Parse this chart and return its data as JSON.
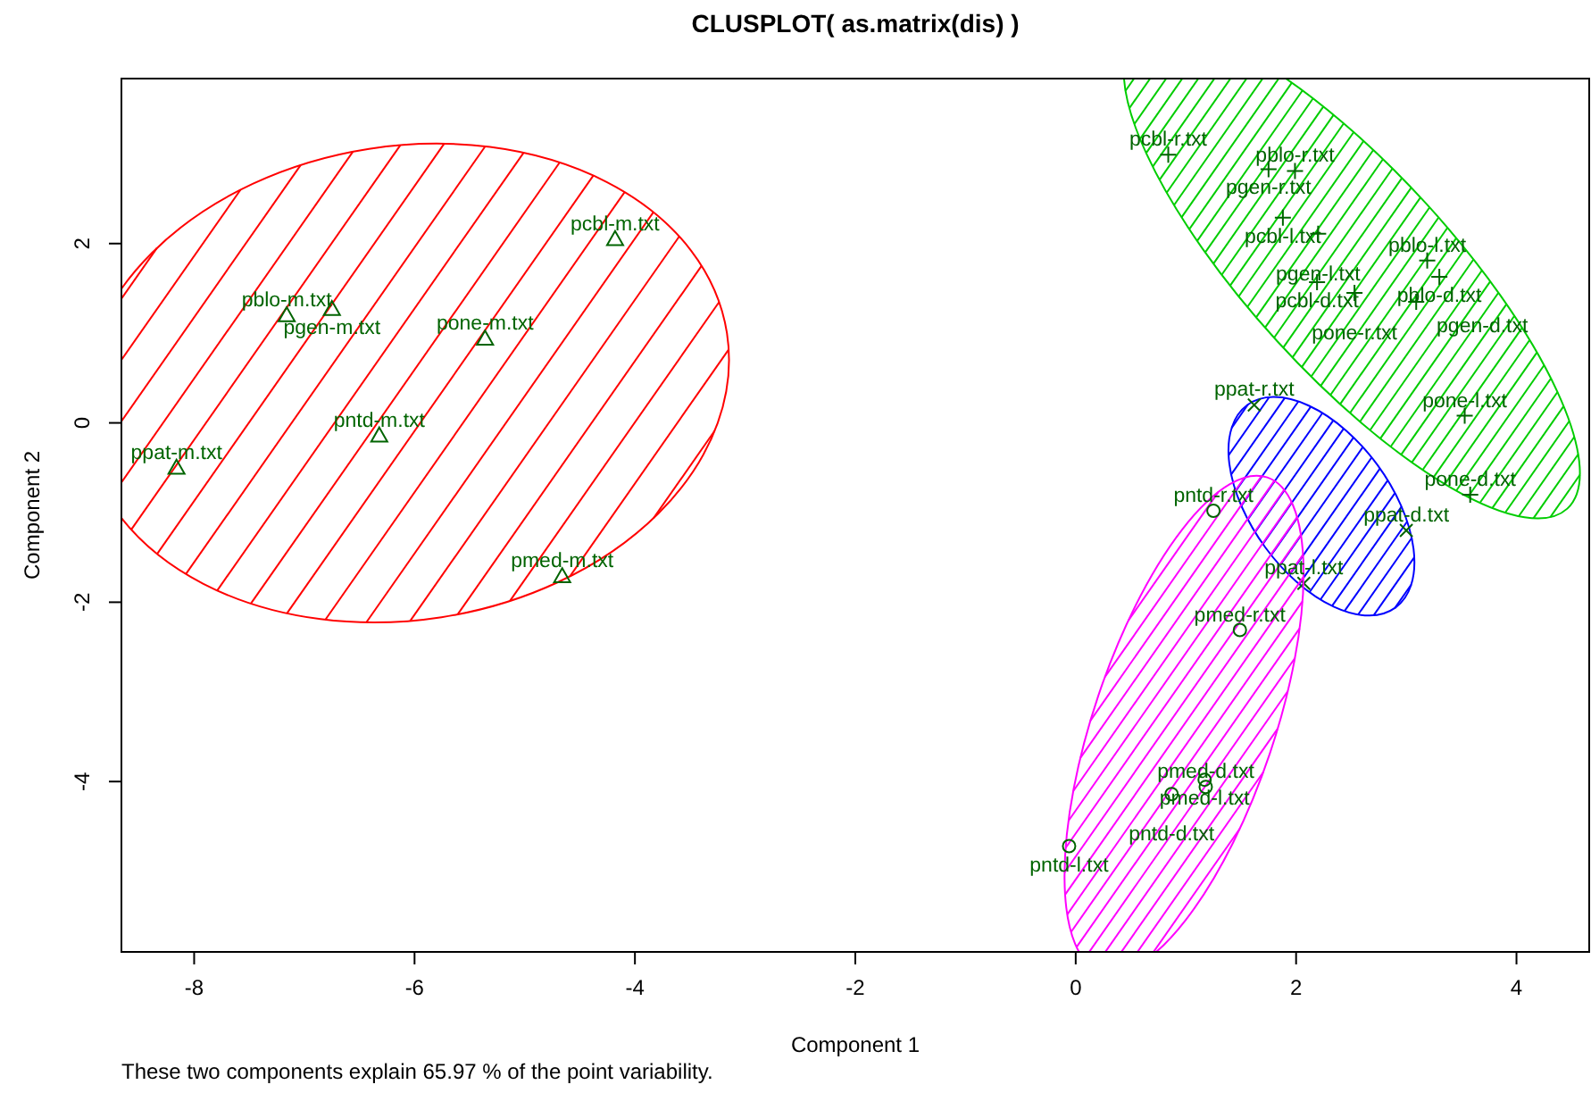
{
  "chart_data": {
    "type": "scatter",
    "title": "CLUSPLOT( as.matrix(dis) )",
    "xlabel": "Component 1",
    "ylabel": "Component 2",
    "xlim": [
      -8.66,
      4.66
    ],
    "ylim": [
      -5.9,
      3.84
    ],
    "xticks": [
      -8,
      -6,
      -4,
      -2,
      0,
      2,
      4
    ],
    "yticks": [
      -4,
      -2,
      0,
      2
    ],
    "grid": false,
    "series": [
      {
        "color": "#006400",
        "marker": "triangle",
        "x": [
          -4.18,
          -7.16,
          -6.75,
          -5.36,
          -6.32,
          -8.16,
          -4.66
        ],
        "values": [
          2.05,
          1.2,
          1.27,
          0.94,
          -0.14,
          -0.5,
          -1.71
        ]
      },
      {
        "color": "#006400",
        "marker": "cross",
        "x": [
          0.84,
          1.75,
          1.99,
          1.88,
          2.2,
          2.19,
          2.53,
          3.19,
          3.3,
          3.09,
          3.53,
          3.58
        ],
        "values": [
          2.99,
          2.83,
          2.81,
          2.29,
          2.11,
          1.57,
          1.45,
          1.81,
          1.63,
          1.35,
          0.08,
          -0.8
        ]
      },
      {
        "color": "#006400",
        "marker": "x",
        "x": [
          1.62,
          3.0,
          2.07
        ],
        "values": [
          0.2,
          -1.2,
          -1.79
        ]
      },
      {
        "color": "#006400",
        "marker": "circle",
        "x": [
          1.25,
          1.49,
          1.18,
          1.17,
          0.87,
          -0.06
        ],
        "values": [
          -0.98,
          -2.31,
          -4.06,
          -3.98,
          -4.14,
          -4.72
        ]
      }
    ],
    "annotations": [
      {
        "text": "pcbl-m.txt",
        "x": -4.18,
        "y": 2.05
      },
      {
        "text": "pblo-m.txt",
        "x": -7.16,
        "y": 1.2
      },
      {
        "text": "pgen-m.txt",
        "x": -6.75,
        "y": 1.27
      },
      {
        "text": "pone-m.txt",
        "x": -5.36,
        "y": 0.94
      },
      {
        "text": "pntd-m.txt",
        "x": -6.32,
        "y": -0.14
      },
      {
        "text": "ppat-m.txt",
        "x": -8.16,
        "y": -0.5
      },
      {
        "text": "pmed-m.txt",
        "x": -4.66,
        "y": -1.71
      },
      {
        "text": "pcbl-r.txt",
        "x": 0.84,
        "y": 2.99
      },
      {
        "text": "pgen-r.txt",
        "x": 1.75,
        "y": 2.83
      },
      {
        "text": "pblo-r.txt",
        "x": 1.99,
        "y": 2.81
      },
      {
        "text": "pcbl-l.txt",
        "x": 1.88,
        "y": 2.29
      },
      {
        "text": "pgen-l.txt",
        "x": 2.2,
        "y": 2.11
      },
      {
        "text": "pcbl-d.txt",
        "x": 2.19,
        "y": 1.57
      },
      {
        "text": "pone-r.txt",
        "x": 2.53,
        "y": 1.45
      },
      {
        "text": "pblo-l.txt",
        "x": 3.19,
        "y": 1.81
      },
      {
        "text": "pblo-d.txt",
        "x": 3.3,
        "y": 1.63
      },
      {
        "text": "pgen-d.txt",
        "x": 3.09,
        "y": 1.35
      },
      {
        "text": "pone-l.txt",
        "x": 3.53,
        "y": 0.08
      },
      {
        "text": "pone-d.txt",
        "x": 3.58,
        "y": -0.8
      },
      {
        "text": "ppat-r.txt",
        "x": 1.62,
        "y": 0.2
      },
      {
        "text": "ppat-d.txt",
        "x": 3.0,
        "y": -1.2
      },
      {
        "text": "ppat-l.txt",
        "x": 2.07,
        "y": -1.79
      },
      {
        "text": "pntd-r.txt",
        "x": 1.25,
        "y": -0.98
      },
      {
        "text": "pmed-r.txt",
        "x": 1.49,
        "y": -2.31
      },
      {
        "text": "pmed-d.txt",
        "x": 1.18,
        "y": -4.06
      },
      {
        "text": "pmed-l.txt",
        "x": 1.17,
        "y": -3.98
      },
      {
        "text": "pntd-d.txt",
        "x": 0.87,
        "y": -4.14
      },
      {
        "text": "pntd-l.txt",
        "x": -0.06,
        "y": -4.72
      },
      "These two components explain 65.97 % of the point variability."
    ]
  }
}
